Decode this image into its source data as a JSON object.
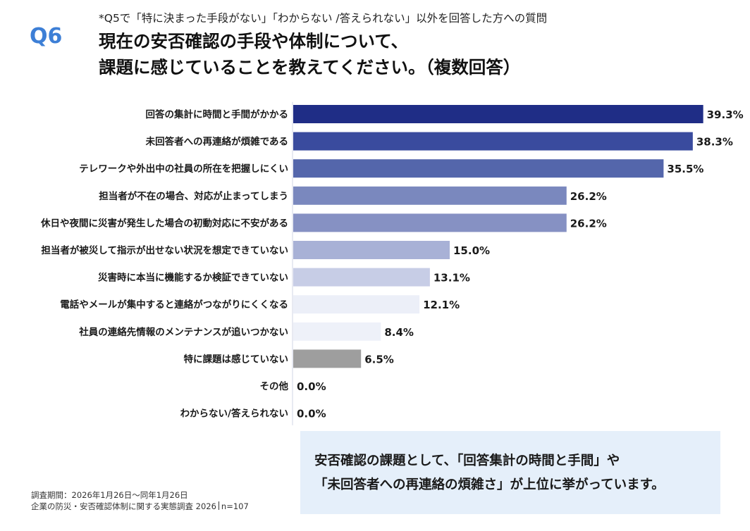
{
  "header": {
    "question_no": "Q6",
    "note": "*Q5で「特に決まった手段がない」「わからない /答えられない」以外を回答した方への質問",
    "title_lines": [
      "現在の安否確認の手段や体制について、",
      "課題に感じていることを教えてください。（複数回答）"
    ]
  },
  "chart_data": {
    "type": "bar",
    "orientation": "horizontal",
    "unit": "%",
    "xlim": [
      0,
      40
    ],
    "categories": [
      "回答の集計に時間と手間がかかる",
      "未回答者への再連絡が煩雑である",
      "テレワークや外出中の社員の所在を把握しにくい",
      "担当者が不在の場合、対応が止まってしまう",
      "休日や夜間に災害が発生した場合の初動対応に不安がある",
      "担当者が被災して指示が出せない状況を想定できていない",
      "災害時に本当に機能するか検証できていない",
      "電話やメールが集中すると連絡がつながりにくくなる",
      "社員の連絡先情報のメンテナンスが追いつかない",
      "特に課題は感じていない",
      "その他",
      "わからない/答えられない"
    ],
    "values": [
      39.3,
      38.3,
      35.5,
      26.2,
      26.2,
      15.0,
      13.1,
      12.1,
      8.4,
      6.5,
      0.0,
      0.0
    ],
    "value_labels": [
      "39.3%",
      "38.3%",
      "35.5%",
      "26.2%",
      "26.2%",
      "15.0%",
      "13.1%",
      "12.1%",
      "8.4%",
      "6.5%",
      "0.0%",
      "0.0%"
    ],
    "colors": [
      "#1f2d86",
      "#3a4b9e",
      "#5466ab",
      "#7a88be",
      "#8691c3",
      "#a8b1d6",
      "#c7cde6",
      "#eceff8",
      "#eef1f9",
      "#9e9e9e",
      "#ffffff",
      "#ffffff"
    ],
    "grid": false,
    "legend": "none"
  },
  "summary": {
    "lines": [
      "安否確認の課題として、「回答集計の時間と手間」や",
      "「未回答者への再連絡の煩雑さ」が上位に挙がっています。"
    ]
  },
  "footer": {
    "period": "調査期間：2026年1月26日～同年1月26日",
    "survey_name": "企業の防災・安否確認体制に関する実態調査 2026",
    "sample": "n=107"
  }
}
